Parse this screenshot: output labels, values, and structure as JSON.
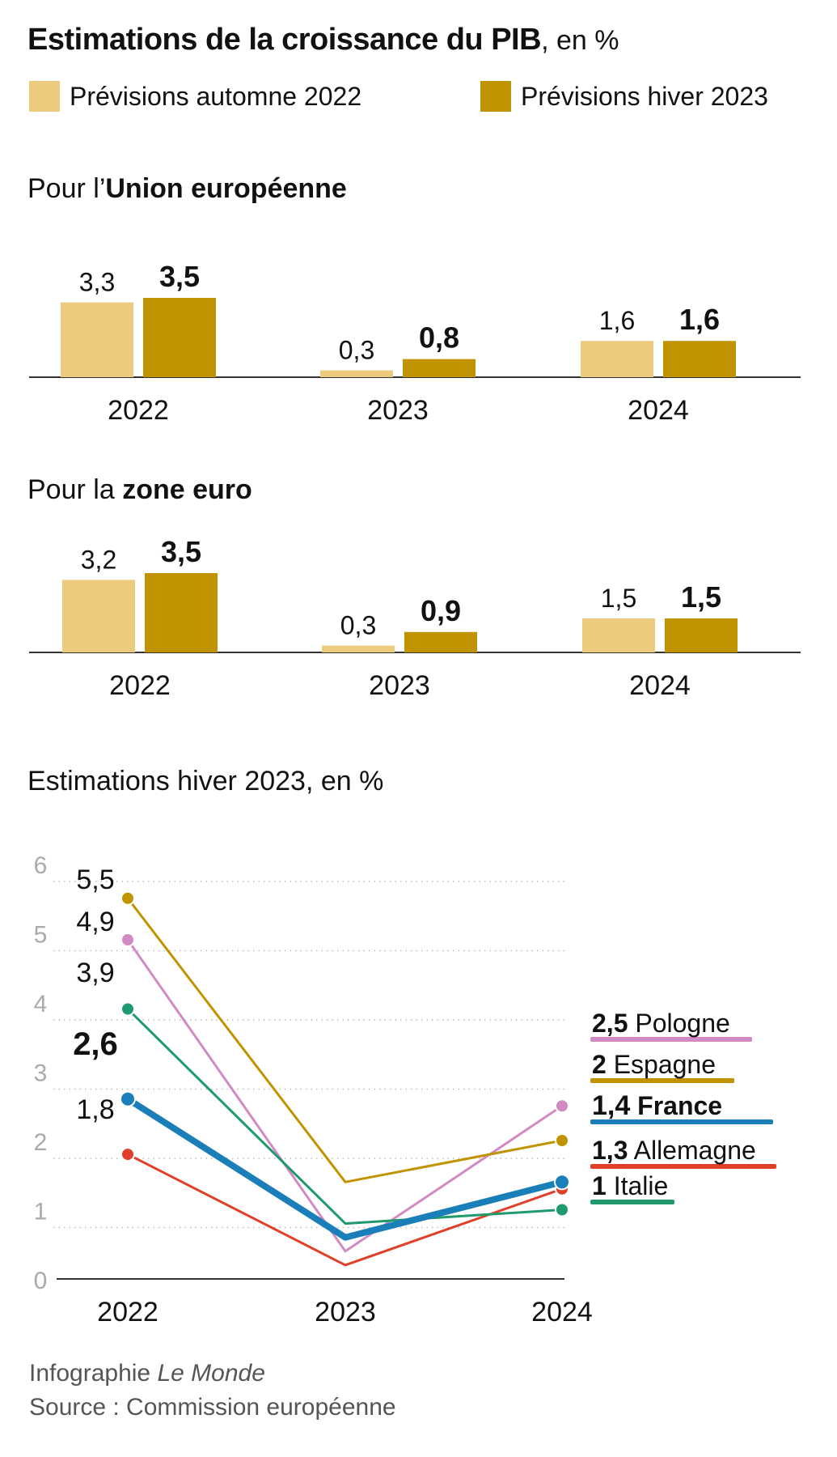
{
  "header": {
    "title_bold": "Estimations de la croissance du PIB",
    "title_unit": ", en %"
  },
  "legend": {
    "autumn": "Prévisions automne 2022",
    "winter": "Prévisions hiver 2023"
  },
  "colors": {
    "autumn": "#eccb7e",
    "winter": "#c09400",
    "axis": "#333333",
    "grid": "#bbbbbb",
    "tick": "#aaaaaa"
  },
  "sections": {
    "eu": {
      "prefix": "Pour l’",
      "bold": "Union européenne"
    },
    "euro": {
      "prefix": "Pour la ",
      "bold": "zone euro"
    },
    "line": {
      "title": "Estimations hiver 2023, en %"
    }
  },
  "chart_data": [
    {
      "type": "bar",
      "title": "Pour l’Union européenne",
      "categories": [
        "2022",
        "2023",
        "2024"
      ],
      "series": [
        {
          "name": "Prévisions automne 2022",
          "values": [
            3.3,
            0.3,
            1.6
          ],
          "labels": [
            "3,3",
            "0,3",
            "1,6"
          ]
        },
        {
          "name": "Prévisions hiver 2023",
          "values": [
            3.5,
            0.8,
            1.6
          ],
          "labels": [
            "3,5",
            "0,8",
            "1,6"
          ]
        }
      ]
    },
    {
      "type": "bar",
      "title": "Pour la zone euro",
      "categories": [
        "2022",
        "2023",
        "2024"
      ],
      "series": [
        {
          "name": "Prévisions automne 2022",
          "values": [
            3.2,
            0.3,
            1.5
          ],
          "labels": [
            "3,2",
            "0,3",
            "1,5"
          ]
        },
        {
          "name": "Prévisions hiver 2023",
          "values": [
            3.5,
            0.9,
            1.5
          ],
          "labels": [
            "3,5",
            "0,9",
            "1,5"
          ]
        }
      ]
    },
    {
      "type": "line",
      "title": "Estimations hiver 2023, en %",
      "x": [
        "2022",
        "2023",
        "2024"
      ],
      "ylim": [
        0,
        6
      ],
      "yticks": [
        "0",
        "1",
        "2",
        "3",
        "4",
        "5",
        "6"
      ],
      "grid": true,
      "series": [
        {
          "name": "Pologne",
          "color": "#d18ac2",
          "values": [
            4.9,
            0.4,
            2.5
          ],
          "start_label": "4,9",
          "end_label": "2,5"
        },
        {
          "name": "Espagne",
          "color": "#c09400",
          "values": [
            5.5,
            1.4,
            2.0
          ],
          "start_label": "5,5",
          "end_label": "2"
        },
        {
          "name": "France",
          "color": "#1a7fb8",
          "values": [
            2.6,
            0.6,
            1.4
          ],
          "start_label": "2,6",
          "end_label": "1,4",
          "highlight": true
        },
        {
          "name": "Allemagne",
          "color": "#e0402a",
          "values": [
            1.8,
            0.2,
            1.3
          ],
          "start_label": "1,8",
          "end_label": "1,3"
        },
        {
          "name": "Italie",
          "color": "#1f9a6c",
          "values": [
            3.9,
            0.8,
            1.0
          ],
          "start_label": "3,9",
          "end_label": "1"
        }
      ]
    }
  ],
  "footer": {
    "credit_prefix": "Infographie ",
    "credit_name": "Le Monde",
    "source": "Source : Commission européenne"
  }
}
